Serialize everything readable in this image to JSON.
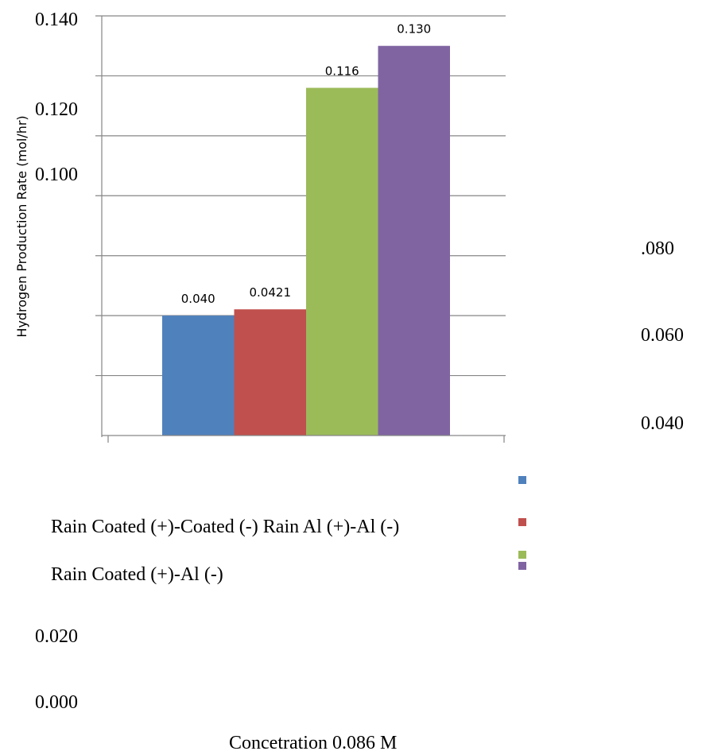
{
  "chart_data": {
    "type": "bar",
    "ylabel": "Hydrogen Production Rate (mol/hr)",
    "xlabel": "Concetration 0.086 M",
    "categories": [
      "Concetration 0.086 M"
    ],
    "ylim": [
      0,
      0.14
    ],
    "grid": true,
    "series": [
      {
        "color": "#4F81BD",
        "values": [
          0.04
        ],
        "data_label": "0.040"
      },
      {
        "color": "#C0504D",
        "values": [
          0.0421
        ],
        "data_label": "0.0421"
      },
      {
        "color": "#9BBB59",
        "values": [
          0.116
        ],
        "data_label": "0.116"
      },
      {
        "color": "#8064A2",
        "values": [
          0.13
        ],
        "data_label": "0.130"
      }
    ],
    "tick_labels": {
      "t140": "0.140",
      "t120": "0.120",
      "t100": "0.100",
      "t080": ".080",
      "t060": "0.060",
      "t040": "0.040",
      "t020": "0.020",
      "t000": "0.000"
    },
    "legend": {
      "line1": "Rain Coated (+)-Coated (-) Rain Al (+)-Al (-)",
      "line2": "Rain Coated (+)-Al (-)"
    }
  }
}
